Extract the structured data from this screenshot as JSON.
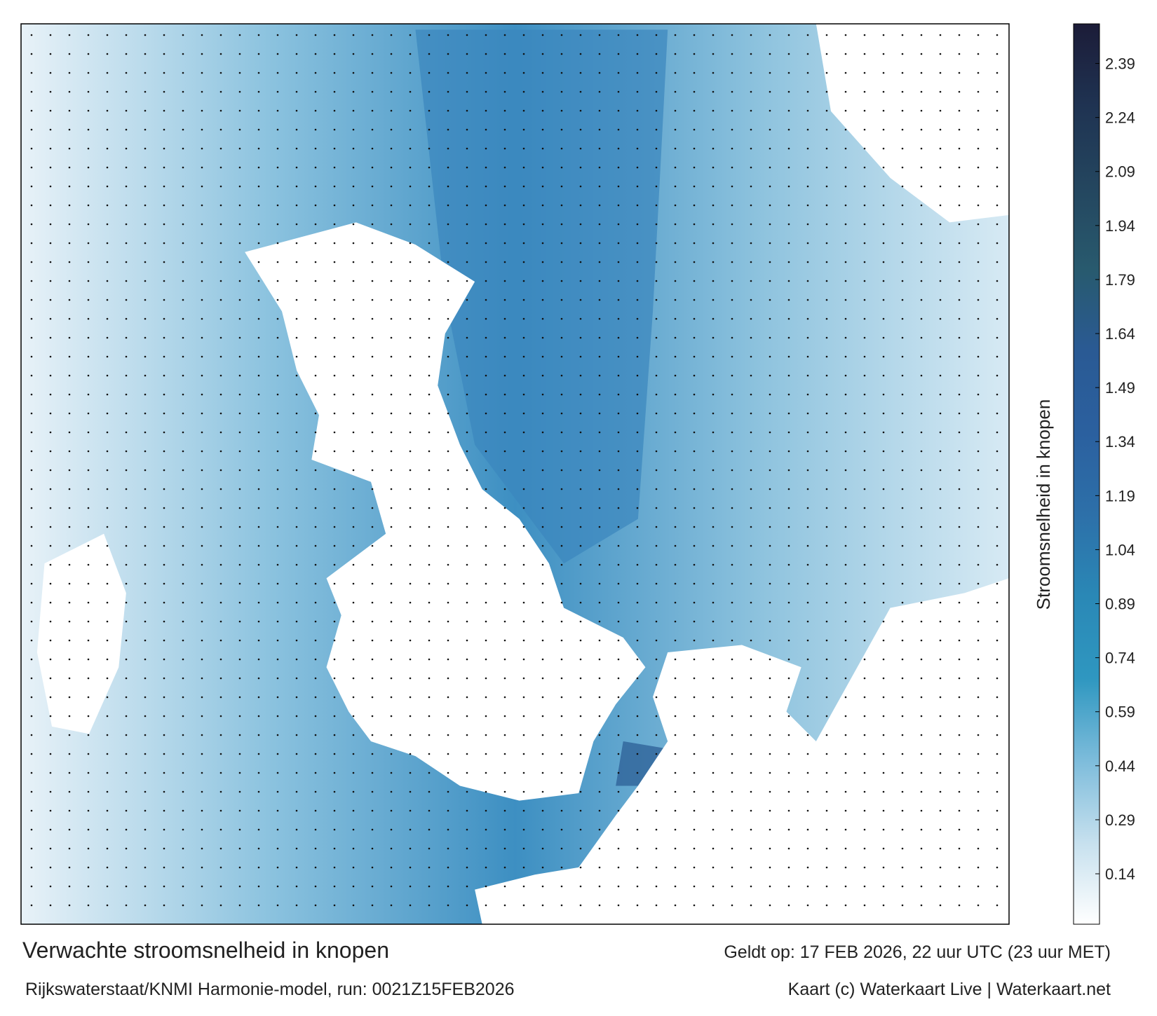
{
  "title": "Verwachte stroomsnelheid in knopen",
  "subtitle": "Rijkswaterstaat/KNMI Harmonie-model, run: 0021Z15FEB2026",
  "valid": "Geldt op: 17 FEB 2026, 22 uur UTC (23 uur MET)",
  "credit": "Kaart (c) Waterkaart Live | Waterkaart.net",
  "colorbar": {
    "label": "Stroomsnelheid in knopen",
    "lim": [
      0,
      2.5
    ],
    "ticks": [
      0.14,
      0.29,
      0.44,
      0.59,
      0.74,
      0.89,
      1.04,
      1.19,
      1.34,
      1.49,
      1.64,
      1.79,
      1.94,
      2.09,
      2.24,
      2.39
    ],
    "colors": [
      "#ffffff",
      "#c6e0ee",
      "#7dbcdb",
      "#2f97c0",
      "#2a88b6",
      "#2d70a9",
      "#2b609f",
      "#2a5a94",
      "#285a6e",
      "#24465f",
      "#1f3352",
      "#1c1c38"
    ]
  }
}
